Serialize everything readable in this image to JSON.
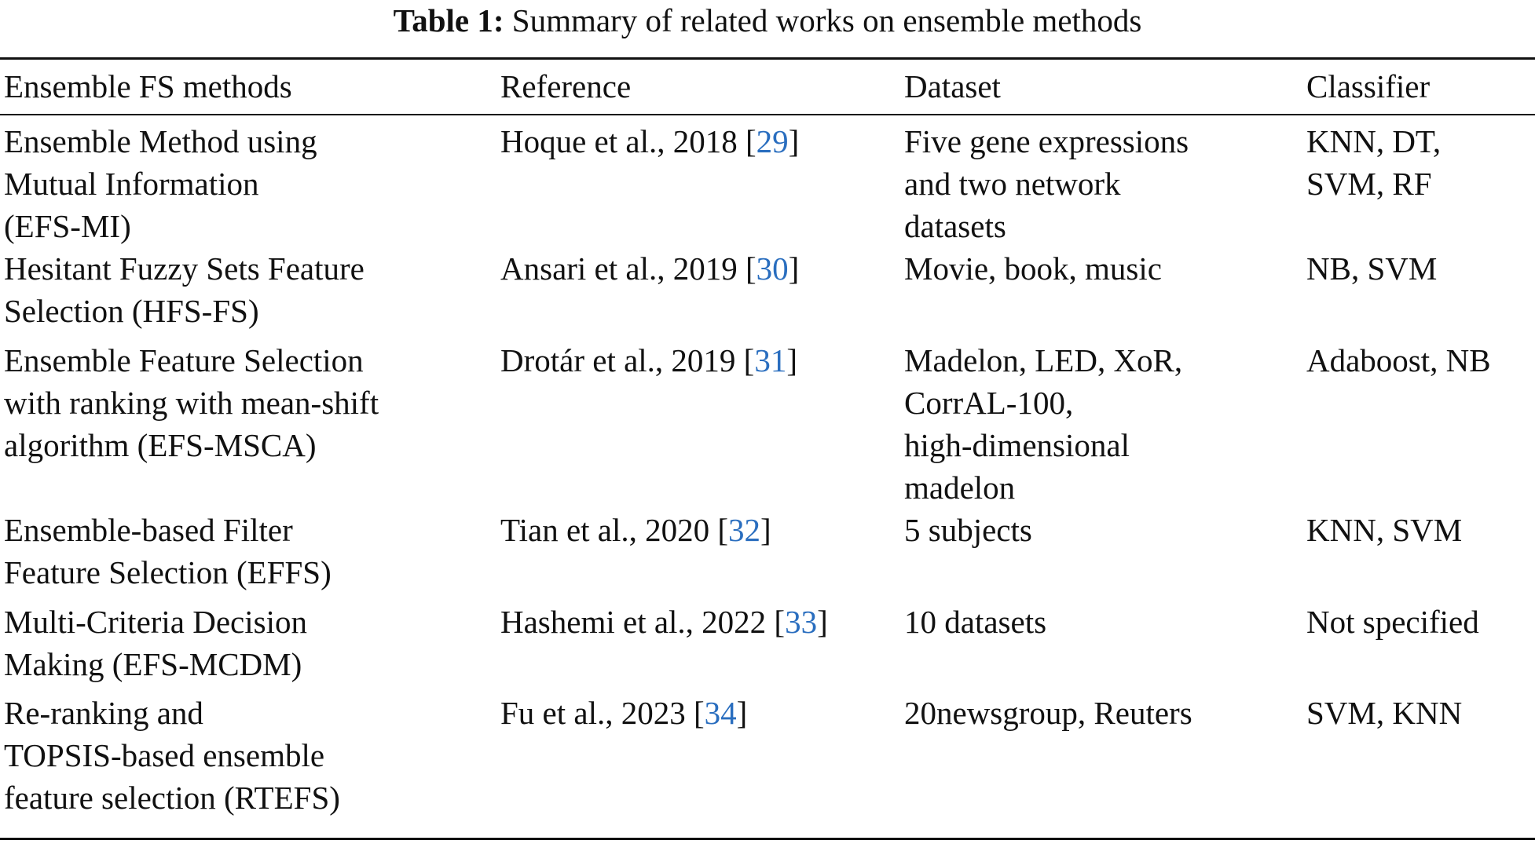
{
  "caption": {
    "label": "Table 1:",
    "text": "Summary of related works on ensemble methods"
  },
  "table": {
    "headers": [
      "Ensemble FS methods",
      "Reference",
      "Dataset",
      "Classifier"
    ],
    "rows": [
      {
        "method": "Ensemble Method using\nMutual Information\n(EFS-MI)",
        "reference": "Hoque et al., 2018 [",
        "ref_num": "29",
        "ref_close": "]",
        "dataset": "Five gene expressions\nand two network\ndatasets",
        "classifier": "KNN, DT,\nSVM, RF"
      },
      {
        "method": "Hesitant Fuzzy Sets Feature\nSelection (HFS-FS)",
        "reference": "Ansari et al., 2019 [",
        "ref_num": "30",
        "ref_close": "]",
        "dataset": "Movie, book, music",
        "classifier": "NB, SVM"
      },
      {
        "method": "Ensemble Feature Selection\nwith ranking with mean-shift\nalgorithm (EFS-MSCA)",
        "reference": "Drotár et al., 2019 [",
        "ref_num": "31",
        "ref_close": "]",
        "dataset": "Madelon, LED, XoR,\nCorrAL-100,\nhigh-dimensional\nmadelon",
        "classifier": "Adaboost, NB"
      },
      {
        "method": "Ensemble-based Filter\nFeature Selection (EFFS)",
        "reference": "Tian et al., 2020 [",
        "ref_num": "32",
        "ref_close": "]",
        "dataset": "5 subjects",
        "classifier": "KNN, SVM"
      },
      {
        "method": "Multi-Criteria Decision\nMaking (EFS-MCDM)",
        "reference": "Hashemi et al., 2022 [",
        "ref_num": "33",
        "ref_close": "]",
        "dataset": "10 datasets",
        "classifier": "Not specified"
      },
      {
        "method": "Re-ranking and\nTOPSIS-based ensemble\nfeature selection (RTEFS)",
        "reference": "Fu et al., 2023 [",
        "ref_num": "34",
        "ref_close": "]",
        "dataset": "20newsgroup, Reuters",
        "classifier": "SVM, KNN"
      }
    ]
  },
  "colors": {
    "text": "#111111",
    "link": "#2a6ebf"
  }
}
